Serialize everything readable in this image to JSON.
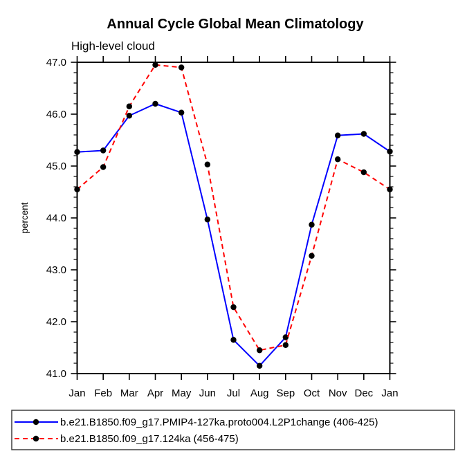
{
  "chart_data": {
    "type": "line",
    "title": "Annual Cycle Global Mean Climatology",
    "subtitle": "High-level cloud",
    "ylabel": "percent",
    "xlabel": "",
    "categories": [
      "Jan",
      "Feb",
      "Mar",
      "Apr",
      "May",
      "Jun",
      "Jul",
      "Aug",
      "Sep",
      "Oct",
      "Nov",
      "Dec",
      "Jan"
    ],
    "ylim": [
      41.0,
      47.0
    ],
    "y_major_tick_labels": [
      "41.0",
      "42.0",
      "43.0",
      "44.0",
      "45.0",
      "46.0",
      "47.0"
    ],
    "y_minor_step": 0.2,
    "grid": false,
    "legend_position": "bottom",
    "axis_color": "#000000",
    "marker_color": "#000000",
    "legend_border_color": "#3f3f3f",
    "series": [
      {
        "name": "b.e21.B1850.f09_g17.PMIP4-127ka.proto004.L2P1change (406-425)",
        "color": "#0000ff",
        "style": "solid",
        "marker": "black-dot",
        "values": [
          45.27,
          45.3,
          45.97,
          46.2,
          46.03,
          43.97,
          41.65,
          41.15,
          41.7,
          43.87,
          45.59,
          45.62,
          45.28
        ]
      },
      {
        "name": "b.e21.B1850.f09_g17.124ka (456-475)",
        "color": "#ff0000",
        "style": "dashed",
        "marker": "black-dot",
        "values": [
          44.55,
          44.98,
          46.15,
          46.95,
          46.9,
          45.03,
          42.28,
          41.45,
          41.55,
          43.27,
          45.13,
          44.88,
          44.55
        ]
      }
    ]
  }
}
